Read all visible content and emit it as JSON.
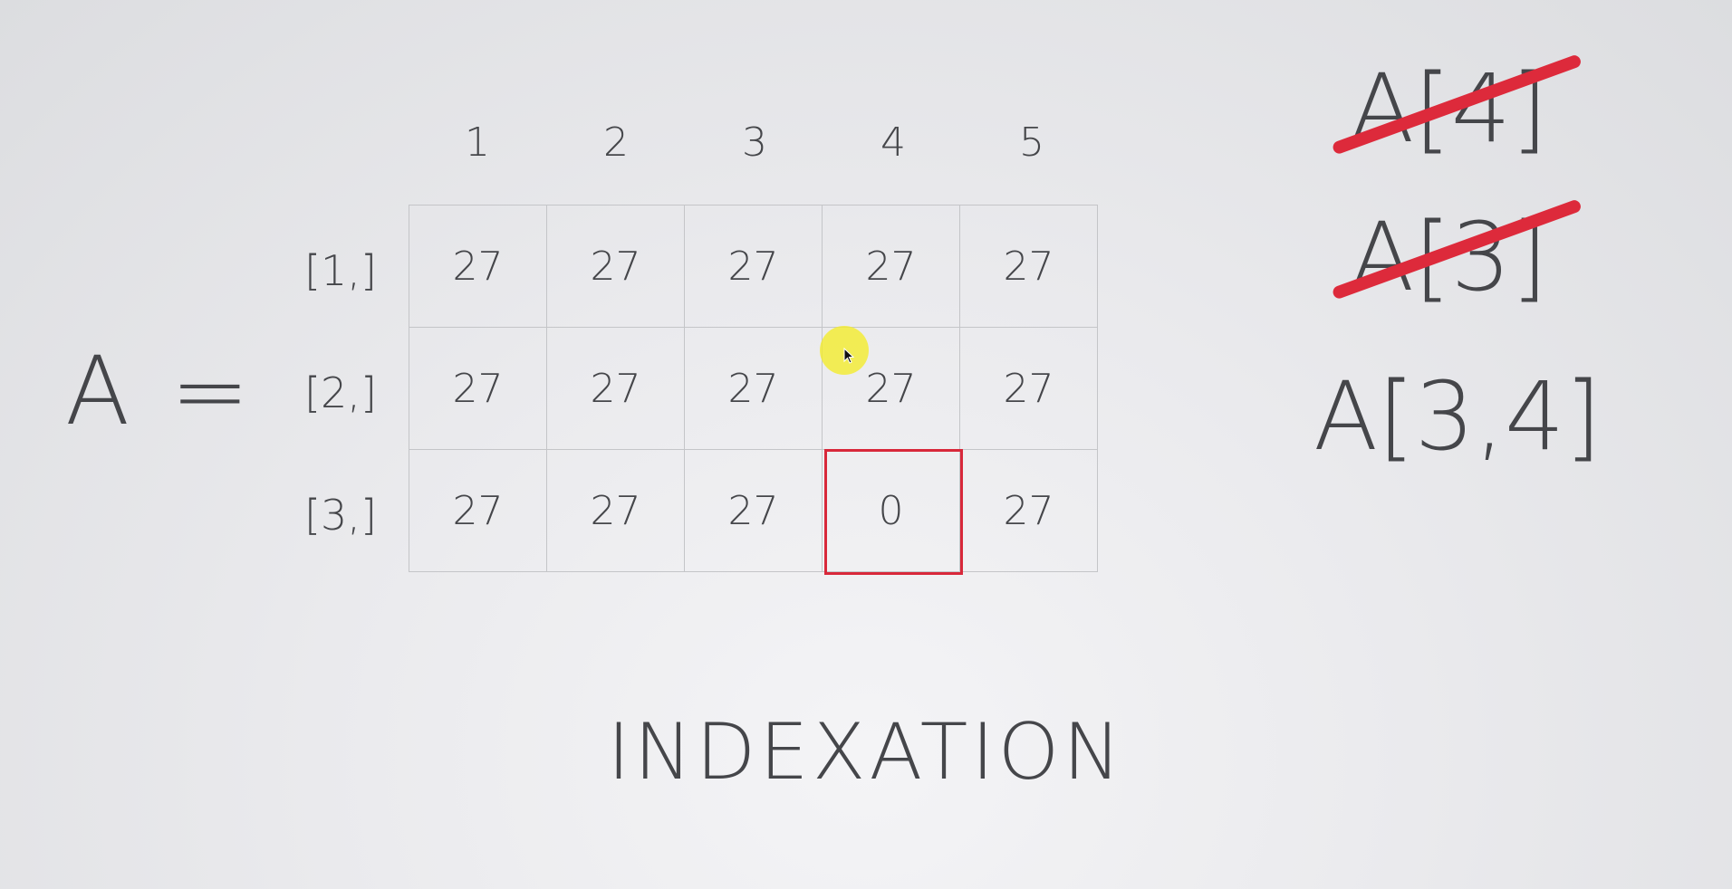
{
  "matrix": {
    "var_label": "A =",
    "col_headers": [
      "1",
      "2",
      "3",
      "4",
      "5"
    ],
    "row_headers": [
      "[1,]",
      "[2,]",
      "[3,]"
    ],
    "cells": [
      [
        "27",
        "27",
        "27",
        "27",
        "27"
      ],
      [
        "27",
        "27",
        "27",
        "27",
        "27"
      ],
      [
        "27",
        "27",
        "27",
        "0",
        "27"
      ]
    ],
    "highlighted_cell": {
      "row": 3,
      "col": 4,
      "color": "#d8283a"
    }
  },
  "notations": [
    {
      "text": "A[4]",
      "struck": true
    },
    {
      "text": "A[3]",
      "struck": true
    },
    {
      "text": "A[3,4]",
      "struck": false
    }
  ],
  "title": "INDEXATION",
  "colors": {
    "text": "#45464a",
    "accent_red": "#dd2a3b",
    "cursor_highlight": "#f4ec28"
  }
}
